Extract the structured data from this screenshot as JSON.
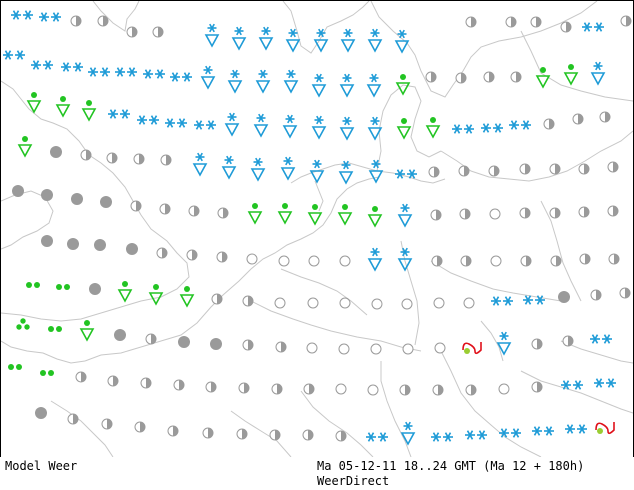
{
  "footer": {
    "model_label": "Model Weer",
    "run_info": "Ma 05-12-11  18..24 GMT (Ma 12 + 180h)",
    "credit": "WeerDirect"
  },
  "colors": {
    "snow": "#1e9bd7",
    "rain": "#22c422",
    "cloud": "#9a9a9a",
    "coast": "#c8c8c8",
    "thunder": "#e0101a",
    "thunder_dot": "#9acd32"
  },
  "legend_icons": {
    "snow": "snow-icon",
    "snow_shower": "snow-shower-icon",
    "rain": "rain-icon",
    "rain_shower": "rain-shower-icon",
    "half_cloud": "half-cloud-icon",
    "clear": "clear-icon",
    "overcast": "overcast-icon",
    "thunder": "thunderstorm-icon"
  }
}
